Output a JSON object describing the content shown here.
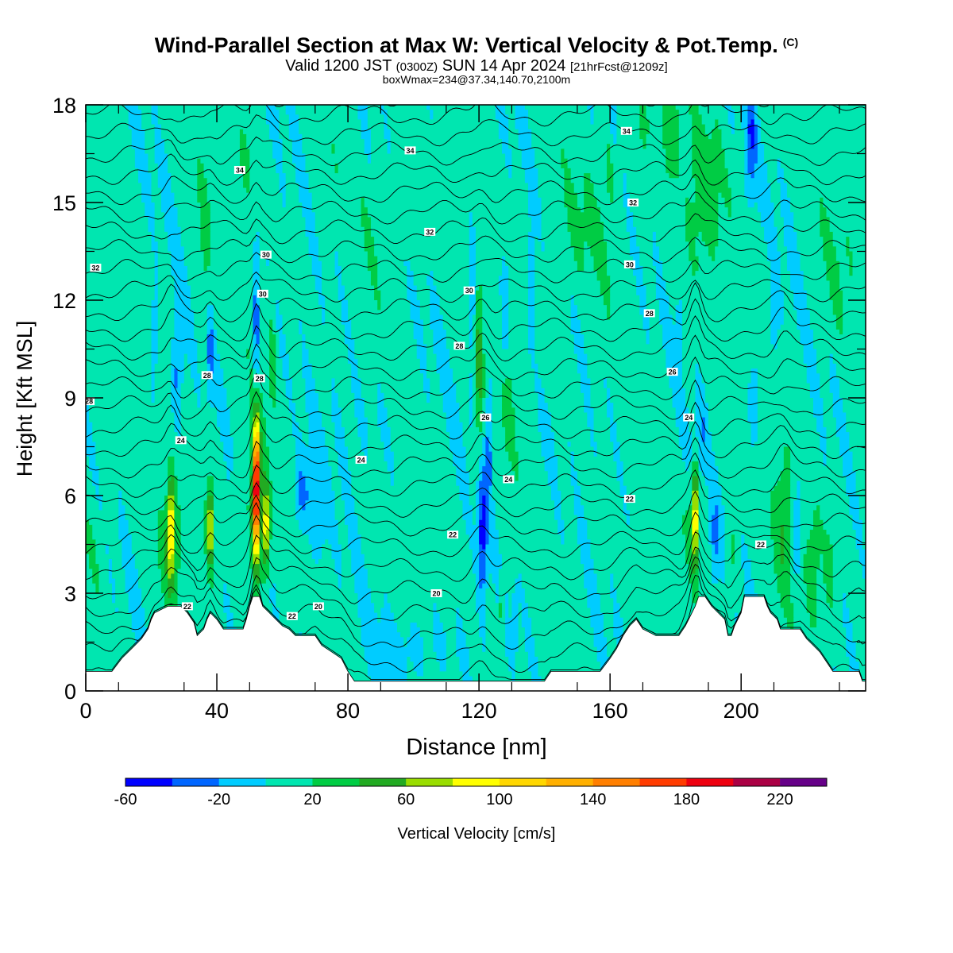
{
  "title": "Wind-Parallel Section at Max W: Vertical Velocity & Pot.Temp.",
  "title_tag": "(C)",
  "valid_main": "Valid 1200 JST",
  "valid_utc": "(0300Z)",
  "valid_date": "SUN 14 Apr 2024",
  "valid_run": "[21hrFcst@1209z]",
  "subtitle": "boxWmax=234@37.34,140.70,2100m",
  "chart_data": {
    "type": "heatmap",
    "xlabel": "Distance [nm]",
    "ylabel": "Height [Kft MSL]",
    "xlim": [
      0,
      238
    ],
    "ylim": [
      0,
      18
    ],
    "xticks": [
      0,
      40,
      80,
      120,
      160,
      200
    ],
    "yticks": [
      0,
      3,
      6,
      9,
      12,
      15,
      18
    ],
    "colorbar": {
      "label": "Vertical Velocity [cm/s]",
      "bounds": [
        -60,
        240
      ],
      "ticks": [
        -60,
        -20,
        20,
        60,
        100,
        140,
        180,
        220
      ],
      "colors": [
        "#0000ff",
        "#0066ff",
        "#00ccff",
        "#00e6b0",
        "#00cc44",
        "#22aa22",
        "#99dd00",
        "#ffff00",
        "#ffd700",
        "#ffb000",
        "#ff7f00",
        "#ff3c00",
        "#ee0010",
        "#aa0044",
        "#660088"
      ]
    },
    "isentrope_labels": [
      {
        "text": "34",
        "x": 47,
        "y": 16.0
      },
      {
        "text": "34",
        "x": 99,
        "y": 16.6
      },
      {
        "text": "34",
        "x": 165,
        "y": 17.2
      },
      {
        "text": "32",
        "x": 3,
        "y": 13.0
      },
      {
        "text": "32",
        "x": 105,
        "y": 14.1
      },
      {
        "text": "32",
        "x": 167,
        "y": 15.0
      },
      {
        "text": "30",
        "x": 55,
        "y": 13.4
      },
      {
        "text": "30",
        "x": 54,
        "y": 12.2
      },
      {
        "text": "30",
        "x": 117,
        "y": 12.3
      },
      {
        "text": "30",
        "x": 166,
        "y": 13.1
      },
      {
        "text": "28",
        "x": 114,
        "y": 10.6
      },
      {
        "text": "28",
        "x": 172,
        "y": 11.6
      },
      {
        "text": "28",
        "x": 37,
        "y": 9.7
      },
      {
        "text": "28",
        "x": 53,
        "y": 9.6
      },
      {
        "text": "28",
        "x": 1,
        "y": 8.9
      },
      {
        "text": "26",
        "x": 179,
        "y": 9.8
      },
      {
        "text": "26",
        "x": 122,
        "y": 8.4
      },
      {
        "text": "24",
        "x": 29,
        "y": 7.7
      },
      {
        "text": "24",
        "x": 84,
        "y": 7.1
      },
      {
        "text": "24",
        "x": 129,
        "y": 6.5
      },
      {
        "text": "24",
        "x": 184,
        "y": 8.4
      },
      {
        "text": "22",
        "x": 166,
        "y": 5.9
      },
      {
        "text": "22",
        "x": 112,
        "y": 4.8
      },
      {
        "text": "22",
        "x": 31,
        "y": 2.6
      },
      {
        "text": "22",
        "x": 63,
        "y": 2.3
      },
      {
        "text": "22",
        "x": 206,
        "y": 4.5
      },
      {
        "text": "20",
        "x": 107,
        "y": 3.0
      },
      {
        "text": "20",
        "x": 71,
        "y": 2.6
      }
    ],
    "terrain_profile_kft": [
      [
        0,
        0.6
      ],
      [
        8,
        0.6
      ],
      [
        11,
        1.0
      ],
      [
        14,
        1.3
      ],
      [
        17,
        1.6
      ],
      [
        19,
        1.9
      ],
      [
        20,
        2.2
      ],
      [
        21,
        2.4
      ],
      [
        25,
        2.6
      ],
      [
        29,
        2.6
      ],
      [
        31,
        2.4
      ],
      [
        33,
        2.1
      ],
      [
        34,
        1.7
      ],
      [
        36,
        1.9
      ],
      [
        37,
        2.2
      ],
      [
        38,
        2.4
      ],
      [
        40,
        2.2
      ],
      [
        42,
        1.9
      ],
      [
        48,
        1.9
      ],
      [
        49,
        2.2
      ],
      [
        50,
        2.6
      ],
      [
        51,
        2.9
      ],
      [
        53,
        2.9
      ],
      [
        54,
        2.6
      ],
      [
        56,
        2.4
      ],
      [
        58,
        2.2
      ],
      [
        60,
        2.0
      ],
      [
        62,
        1.9
      ],
      [
        64,
        1.7
      ],
      [
        70,
        1.7
      ],
      [
        72,
        1.4
      ],
      [
        75,
        1.2
      ],
      [
        78,
        1.0
      ],
      [
        80,
        0.6
      ],
      [
        82,
        0.3
      ],
      [
        90,
        0.3
      ],
      [
        140,
        0.3
      ],
      [
        142,
        0.6
      ],
      [
        157,
        0.6
      ],
      [
        160,
        1.0
      ],
      [
        162,
        1.3
      ],
      [
        164,
        1.7
      ],
      [
        166,
        2.0
      ],
      [
        168,
        2.2
      ],
      [
        170,
        1.9
      ],
      [
        174,
        1.7
      ],
      [
        181,
        1.7
      ],
      [
        183,
        2.0
      ],
      [
        185,
        2.4
      ],
      [
        186,
        2.6
      ],
      [
        187,
        2.9
      ],
      [
        189,
        2.9
      ],
      [
        191,
        2.6
      ],
      [
        193,
        2.4
      ],
      [
        195,
        2.2
      ],
      [
        196,
        1.7
      ],
      [
        197,
        1.7
      ],
      [
        198,
        2.0
      ],
      [
        200,
        2.4
      ],
      [
        201,
        2.9
      ],
      [
        207,
        2.9
      ],
      [
        208,
        2.6
      ],
      [
        209,
        2.4
      ],
      [
        211,
        2.2
      ],
      [
        212,
        1.9
      ],
      [
        218,
        1.9
      ],
      [
        220,
        1.6
      ],
      [
        222,
        1.4
      ],
      [
        224,
        1.2
      ],
      [
        226,
        0.9
      ],
      [
        228,
        0.6
      ],
      [
        236,
        0.6
      ],
      [
        237,
        0.3
      ],
      [
        238,
        0.3
      ]
    ]
  }
}
